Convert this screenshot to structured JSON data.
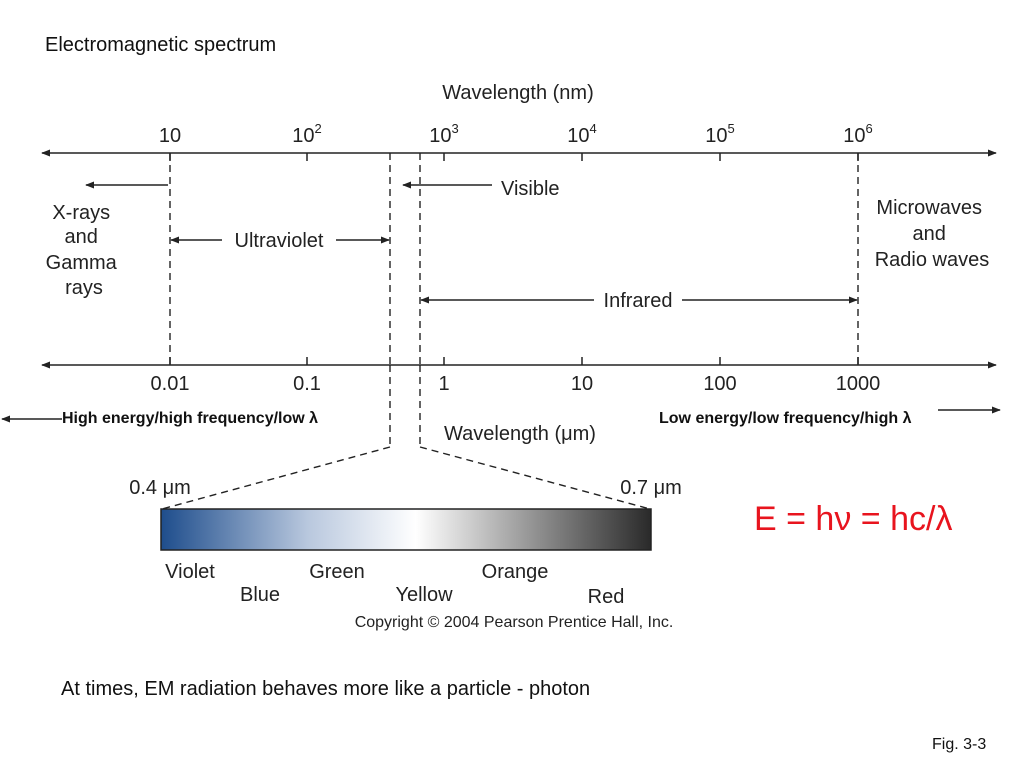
{
  "slide": {
    "title": "Electromagnetic spectrum",
    "footer_note": "At times, EM radiation behaves more like a particle - photon",
    "fig_label": "Fig. 3-3",
    "high_energy_label": "High energy/high frequency/low λ",
    "low_energy_label": "Low energy/low frequency/high λ",
    "formula": "E = hν = hc/λ"
  },
  "diagram": {
    "top_axis": {
      "title": "Wavelength (nm)",
      "ticks": [
        {
          "base": "10",
          "exp": ""
        },
        {
          "base": "10",
          "exp": "2"
        },
        {
          "base": "10",
          "exp": "3"
        },
        {
          "base": "10",
          "exp": "4"
        },
        {
          "base": "10",
          "exp": "5"
        },
        {
          "base": "10",
          "exp": "6"
        }
      ]
    },
    "bottom_axis": {
      "title": "Wavelength (μm)",
      "ticks": [
        "0.01",
        "0.1",
        "1",
        "10",
        "100",
        "1000"
      ]
    },
    "regions": {
      "xray_lines": [
        "X-rays",
        "and",
        "Gamma",
        "rays"
      ],
      "ultraviolet": "Ultraviolet",
      "visible": "Visible",
      "infrared": "Infrared",
      "microwave_lines": [
        "Microwaves",
        "and",
        "Radio waves"
      ]
    },
    "visible_band": {
      "start_label": "0.4 μm",
      "end_label": "0.7 μm",
      "colors_upper": [
        "Violet",
        "Green",
        "Orange"
      ],
      "colors_lower": [
        "Blue",
        "Yellow",
        "Red"
      ],
      "gradient_colors": [
        "#1e4d8c",
        "#b9c8de",
        "#ffffff",
        "#8a8a8a",
        "#2a2a2a"
      ]
    },
    "copyright": "Copyright © 2004 Pearson Prentice Hall, Inc."
  }
}
